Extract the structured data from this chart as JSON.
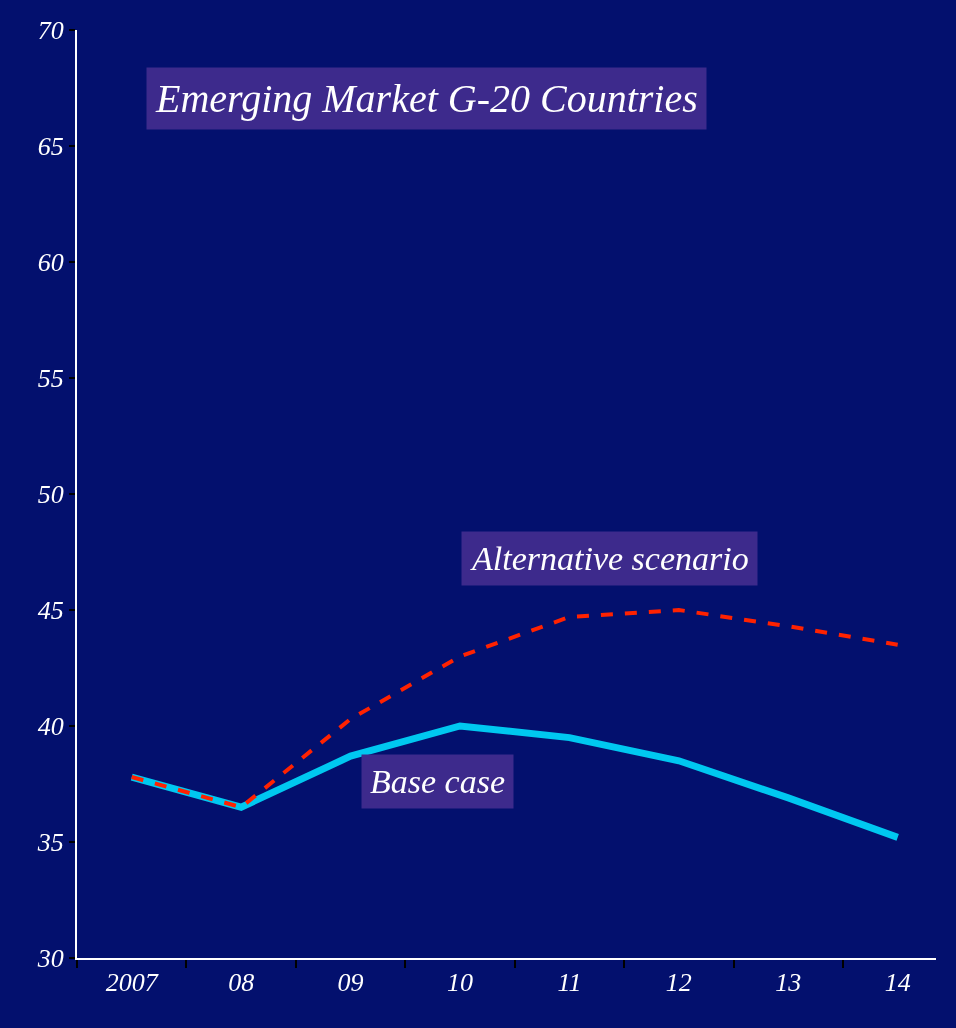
{
  "chart_data": {
    "type": "line",
    "title": "Emerging Market G-20 Countries",
    "categories": [
      "2007",
      "08",
      "09",
      "10",
      "11",
      "12",
      "13",
      "14"
    ],
    "series": [
      {
        "name": "Base case",
        "color": "#00c8f0",
        "line_style": "solid",
        "values": [
          37.8,
          36.5,
          38.7,
          40.0,
          39.5,
          38.5,
          36.9,
          35.2
        ]
      },
      {
        "name": "Alternative scenario",
        "color": "#ff2200",
        "line_style": "dashed",
        "values": [
          37.8,
          36.5,
          40.3,
          43.0,
          44.7,
          45.0,
          44.3,
          43.5
        ]
      }
    ],
    "ylim": [
      30,
      70
    ],
    "yticks": [
      30,
      35,
      40,
      45,
      50,
      55,
      60,
      65,
      70
    ],
    "grid": false,
    "legend": false,
    "marker": "none"
  }
}
